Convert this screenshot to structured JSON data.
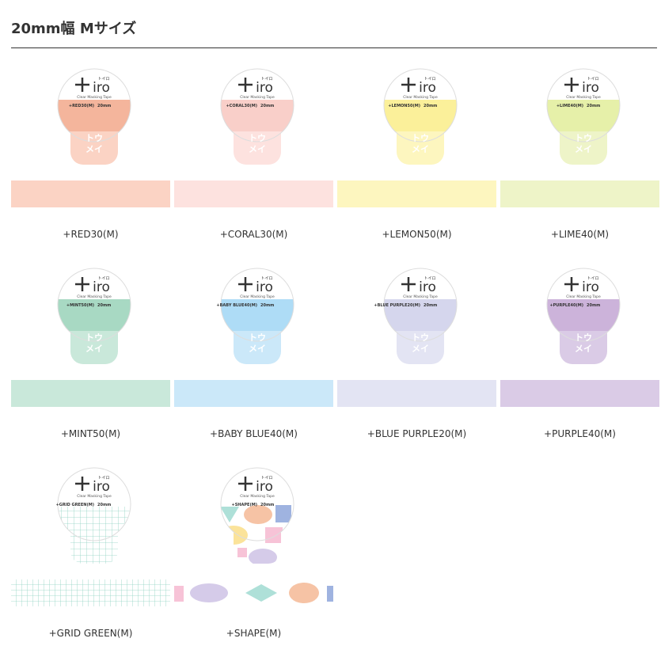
{
  "header": {
    "title": "20mm幅 Mサイズ"
  },
  "brand": {
    "name": "iro",
    "kana": "トイロ",
    "sub": "Clear Masking Tape",
    "clear1": "トウ",
    "clear2": "メイ"
  },
  "products": [
    {
      "name": "+RED30(M)",
      "label": "+RED30(M)",
      "width": "20mm",
      "color": "#f4b59c",
      "tape": "#fbd3c4",
      "pattern": "plain"
    },
    {
      "name": "+CORAL30(M)",
      "label": "+CORAL30(M)",
      "width": "20mm",
      "color": "#f9cfc9",
      "tape": "#fde2df",
      "pattern": "plain"
    },
    {
      "name": "+LEMON50(M)",
      "label": "+LEMON50(M)",
      "width": "20mm",
      "color": "#fbf09a",
      "tape": "#fdf6bf",
      "pattern": "plain"
    },
    {
      "name": "+LIME40(M)",
      "label": "+LIME40(M)",
      "width": "20mm",
      "color": "#e6f0a9",
      "tape": "#eef4c8",
      "pattern": "plain"
    },
    {
      "name": "+MINT50(M)",
      "label": "+MINT50(M)",
      "width": "20mm",
      "color": "#a8d9c3",
      "tape": "#c9e8da",
      "pattern": "plain"
    },
    {
      "name": "+BABY BLUE40(M)",
      "label": "+BABY BLUE40(M)",
      "width": "20mm",
      "color": "#aedcf6",
      "tape": "#cbe8f9",
      "pattern": "plain"
    },
    {
      "name": "+BLUE PURPLE20(M)",
      "label": "+BLUE PURPLE20(M)",
      "width": "20mm",
      "color": "#d5d6ed",
      "tape": "#e3e4f3",
      "pattern": "plain"
    },
    {
      "name": "+PURPLE40(M)",
      "label": "+PURPLE40(M)",
      "width": "20mm",
      "color": "#ccb3da",
      "tape": "#dacbe6",
      "pattern": "plain"
    },
    {
      "name": "+GRID GREEN(M)",
      "label": "+GRID GREEN(M)",
      "width": "20mm",
      "color": "#8fd3c2",
      "tape": "#ffffff",
      "pattern": "grid"
    },
    {
      "name": "+SHAPE(M)",
      "label": "+SHAPE(M)",
      "width": "20mm",
      "color": "#f6c3a5",
      "tape": "#ffffff",
      "pattern": "shape"
    }
  ]
}
